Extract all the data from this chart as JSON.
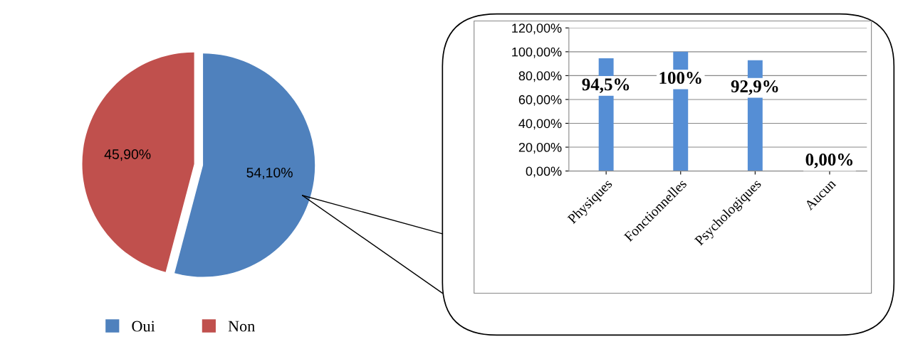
{
  "chart_data": [
    {
      "type": "pie",
      "categories": [
        "Oui",
        "Non"
      ],
      "values": [
        54.1,
        45.9
      ],
      "colors": [
        "#4f81bd",
        "#c0504d"
      ],
      "value_labels": [
        "54,10%",
        "45,90%"
      ],
      "legend": "bottom"
    },
    {
      "type": "bar",
      "categories": [
        "Physiques",
        "Fonctionnelles",
        "Psychologiques",
        "Aucun"
      ],
      "values": [
        94.5,
        100,
        92.9,
        0
      ],
      "color": "#558ed5",
      "value_labels": [
        "94,5%",
        "100%",
        "92,9%",
        "0,00%"
      ],
      "ylim": [
        0,
        120
      ],
      "yticks": [
        {
          "value": 0,
          "label": "0,00%"
        },
        {
          "value": 20,
          "label": "20,00%"
        },
        {
          "value": 40,
          "label": "40,00%"
        },
        {
          "value": 60,
          "label": "60,00%"
        },
        {
          "value": 80,
          "label": "80,00%"
        },
        {
          "value": 100,
          "label": "100,00%"
        },
        {
          "value": 120,
          "label": "120,00%"
        }
      ],
      "grid": "y"
    }
  ]
}
